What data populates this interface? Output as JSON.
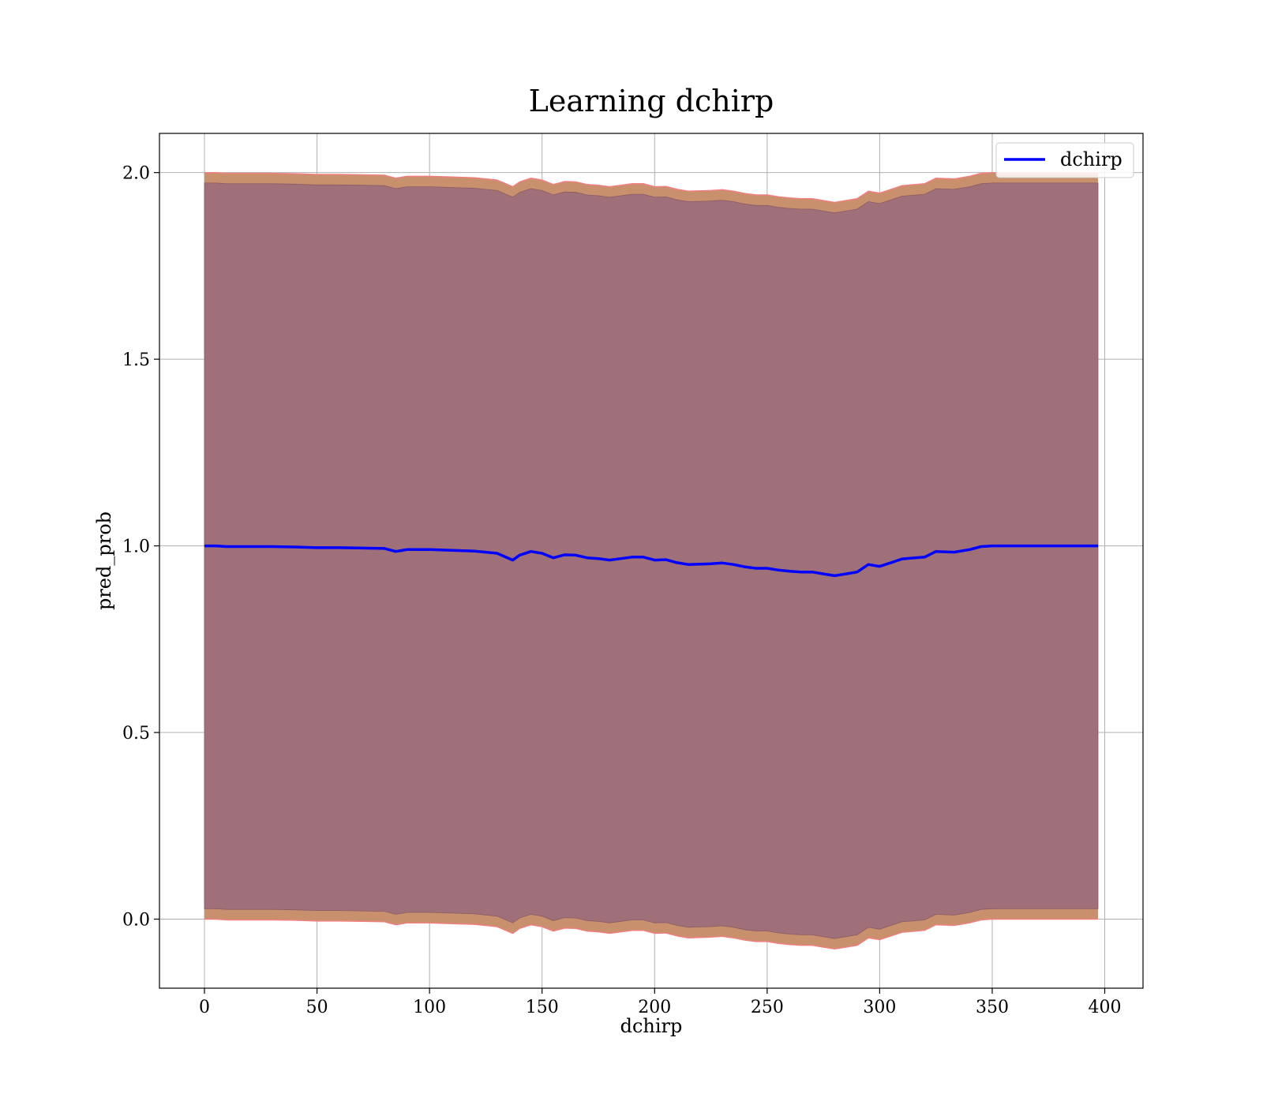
{
  "chart_data": {
    "type": "line",
    "title": "Learning dchirp",
    "xlabel": "dchirp",
    "ylabel": "pred_prob",
    "xlim": [
      -20,
      417
    ],
    "ylim": [
      -0.185,
      2.105
    ],
    "xticks": [
      0,
      50,
      100,
      150,
      200,
      250,
      300,
      350,
      400
    ],
    "xtick_labels": [
      "0",
      "50",
      "100",
      "150",
      "200",
      "250",
      "300",
      "350",
      "400"
    ],
    "yticks": [
      0.0,
      0.5,
      1.0,
      1.5,
      2.0
    ],
    "ytick_labels": [
      "0.0",
      "0.5",
      "1.0",
      "1.5",
      "2.0"
    ],
    "grid": true,
    "legend": {
      "position": "top-right",
      "entries": [
        "dchirp"
      ]
    },
    "colors": {
      "line": "#0000ff",
      "band_outer": "#c8906c",
      "band_inner": "#a0707a",
      "band_edge": "#f08080"
    },
    "series": [
      {
        "name": "dchirp",
        "x": [
          0,
          5,
          10,
          20,
          30,
          40,
          50,
          60,
          70,
          80,
          85,
          90,
          100,
          110,
          120,
          130,
          137,
          140,
          145,
          150,
          155,
          160,
          165,
          170,
          175,
          180,
          185,
          190,
          195,
          200,
          205,
          210,
          215,
          220,
          225,
          230,
          235,
          240,
          245,
          250,
          255,
          260,
          265,
          270,
          275,
          280,
          285,
          290,
          295,
          300,
          305,
          310,
          320,
          325,
          333,
          340,
          345,
          350,
          360,
          370,
          380,
          390,
          397
        ],
        "y": [
          1.0,
          1.0,
          0.998,
          0.998,
          0.998,
          0.997,
          0.995,
          0.995,
          0.994,
          0.993,
          0.985,
          0.99,
          0.99,
          0.988,
          0.986,
          0.98,
          0.962,
          0.975,
          0.985,
          0.98,
          0.968,
          0.976,
          0.975,
          0.968,
          0.966,
          0.962,
          0.966,
          0.97,
          0.97,
          0.962,
          0.963,
          0.955,
          0.95,
          0.951,
          0.952,
          0.954,
          0.95,
          0.944,
          0.94,
          0.94,
          0.935,
          0.932,
          0.93,
          0.93,
          0.925,
          0.92,
          0.925,
          0.93,
          0.95,
          0.945,
          0.955,
          0.965,
          0.97,
          0.985,
          0.983,
          0.99,
          0.998,
          1.0,
          1.0,
          1.0,
          1.0,
          1.0,
          1.0
        ],
        "band_outer_upper": [
          2.0,
          2.0,
          1.998,
          1.998,
          1.998,
          1.997,
          1.995,
          1.995,
          1.994,
          1.993,
          1.985,
          1.99,
          1.99,
          1.988,
          1.986,
          1.98,
          1.962,
          1.975,
          1.985,
          1.98,
          1.968,
          1.976,
          1.975,
          1.968,
          1.966,
          1.962,
          1.966,
          1.97,
          1.97,
          1.962,
          1.963,
          1.955,
          1.95,
          1.951,
          1.952,
          1.954,
          1.95,
          1.944,
          1.94,
          1.94,
          1.935,
          1.932,
          1.93,
          1.93,
          1.925,
          1.92,
          1.925,
          1.93,
          1.95,
          1.945,
          1.955,
          1.965,
          1.97,
          1.985,
          1.983,
          1.99,
          1.998,
          2.0,
          2.0,
          2.0,
          2.0,
          2.0,
          2.0
        ],
        "band_outer_lower": [
          0.0,
          0.0,
          -0.002,
          -0.002,
          -0.002,
          -0.003,
          -0.005,
          -0.005,
          -0.006,
          -0.007,
          -0.015,
          -0.01,
          -0.01,
          -0.012,
          -0.014,
          -0.02,
          -0.038,
          -0.025,
          -0.015,
          -0.02,
          -0.032,
          -0.024,
          -0.025,
          -0.032,
          -0.034,
          -0.038,
          -0.034,
          -0.03,
          -0.03,
          -0.038,
          -0.037,
          -0.045,
          -0.05,
          -0.049,
          -0.048,
          -0.046,
          -0.05,
          -0.056,
          -0.06,
          -0.06,
          -0.065,
          -0.068,
          -0.07,
          -0.07,
          -0.075,
          -0.08,
          -0.075,
          -0.07,
          -0.05,
          -0.055,
          -0.045,
          -0.035,
          -0.03,
          -0.015,
          -0.017,
          -0.01,
          -0.002,
          0.0,
          0.0,
          0.0,
          0.0,
          0.0,
          0.0
        ],
        "band_inner_upper": [
          1.972,
          1.972,
          1.97,
          1.97,
          1.97,
          1.969,
          1.967,
          1.967,
          1.966,
          1.965,
          1.957,
          1.962,
          1.962,
          1.96,
          1.958,
          1.952,
          1.934,
          1.947,
          1.957,
          1.952,
          1.94,
          1.948,
          1.947,
          1.94,
          1.938,
          1.934,
          1.938,
          1.942,
          1.942,
          1.934,
          1.935,
          1.927,
          1.922,
          1.923,
          1.924,
          1.926,
          1.922,
          1.916,
          1.912,
          1.912,
          1.907,
          1.904,
          1.902,
          1.902,
          1.897,
          1.892,
          1.897,
          1.902,
          1.922,
          1.917,
          1.927,
          1.937,
          1.942,
          1.957,
          1.955,
          1.962,
          1.97,
          1.972,
          1.972,
          1.972,
          1.972,
          1.972,
          1.972
        ],
        "band_inner_lower": [
          0.028,
          0.028,
          0.026,
          0.026,
          0.026,
          0.025,
          0.023,
          0.023,
          0.022,
          0.021,
          0.013,
          0.018,
          0.018,
          0.016,
          0.014,
          0.008,
          -0.01,
          0.003,
          0.013,
          0.008,
          -0.004,
          0.004,
          0.003,
          -0.004,
          -0.006,
          -0.01,
          -0.006,
          -0.002,
          -0.002,
          -0.01,
          -0.009,
          -0.017,
          -0.022,
          -0.021,
          -0.02,
          -0.018,
          -0.022,
          -0.028,
          -0.032,
          -0.032,
          -0.037,
          -0.04,
          -0.042,
          -0.042,
          -0.047,
          -0.052,
          -0.047,
          -0.042,
          -0.022,
          -0.027,
          -0.017,
          -0.007,
          -0.002,
          0.013,
          0.011,
          0.018,
          0.026,
          0.028,
          0.028,
          0.028,
          0.028,
          0.028,
          0.028
        ]
      }
    ]
  }
}
